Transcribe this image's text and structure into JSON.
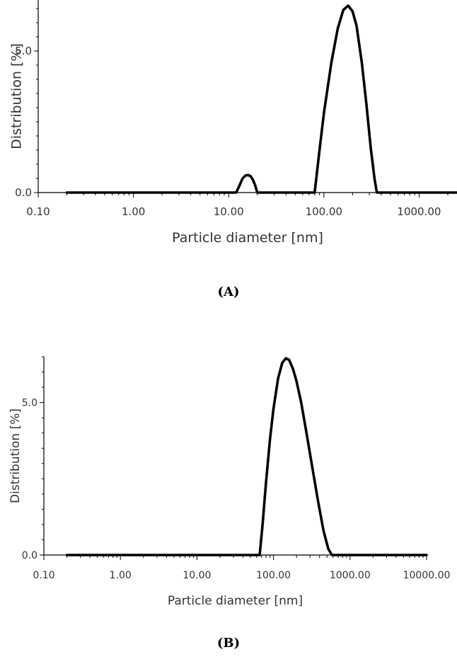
{
  "chart_data": [
    {
      "type": "line",
      "panel_label": "(A)",
      "xlabel": "Particle diameter [nm]",
      "ylabel": "Distribution [%]",
      "xscale": "log",
      "xlim": [
        0.1,
        2500
      ],
      "ylim": [
        0,
        6.8
      ],
      "x_ticks": [
        "0.10",
        "1.00",
        "10.00",
        "100.00",
        "1000.00"
      ],
      "y_ticks": [
        "0.0",
        "5.0"
      ],
      "grid": false,
      "series": [
        {
          "x": [
            0.2,
            12.0,
            13.0,
            14.0,
            15.0,
            16.0,
            17.0,
            18.0,
            19.0,
            20.0,
            80.0,
            90.0,
            100.0,
            120.0,
            140.0,
            160.0,
            180.0,
            200.0,
            220.0,
            250.0,
            280.0,
            310.0,
            340.0,
            360.0,
            2500.0
          ],
          "y": [
            0.0,
            0.0,
            0.25,
            0.5,
            0.6,
            0.62,
            0.58,
            0.45,
            0.25,
            0.0,
            0.0,
            1.5,
            2.8,
            4.6,
            5.8,
            6.45,
            6.6,
            6.4,
            5.9,
            4.6,
            3.1,
            1.6,
            0.5,
            0.0,
            0.0
          ]
        }
      ]
    },
    {
      "type": "line",
      "panel_label": "(B)",
      "xlabel": "Particle diameter [nm]",
      "ylabel": "Distribution [%]",
      "xscale": "log",
      "xlim": [
        0.1,
        10000
      ],
      "ylim": [
        0,
        6.5
      ],
      "x_ticks": [
        "0.10",
        "1.00",
        "10.00",
        "100.00",
        "1000.00",
        "10000.00"
      ],
      "y_ticks": [
        "0.0",
        "5.0"
      ],
      "grid": false,
      "series": [
        {
          "x": [
            0.2,
            66.0,
            72.0,
            80.0,
            90.0,
            100.0,
            115.0,
            130.0,
            145.0,
            160.0,
            180.0,
            200.0,
            230.0,
            270.0,
            320.0,
            380.0,
            450.0,
            520.0,
            580.0,
            10000.0
          ],
          "y": [
            0.0,
            0.0,
            1.0,
            2.4,
            3.8,
            4.8,
            5.8,
            6.3,
            6.45,
            6.4,
            6.1,
            5.7,
            5.0,
            4.0,
            2.9,
            1.8,
            0.8,
            0.2,
            0.0,
            0.0
          ]
        }
      ]
    }
  ]
}
